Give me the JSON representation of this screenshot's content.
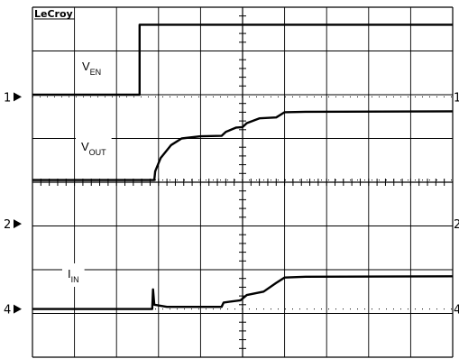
{
  "brand": "LeCroy",
  "chart_data": {
    "type": "line",
    "title": "",
    "grid": true,
    "divisions": {
      "x": 10,
      "y": 8
    },
    "x_range_div": [
      0,
      10
    ],
    "y_range_div": [
      0,
      8
    ],
    "series": [
      {
        "name": "VEN",
        "label_main": "V",
        "label_sub": "EN",
        "marker": "1",
        "ground_div": 5.95,
        "points": [
          [
            0,
            6.0
          ],
          [
            2.55,
            6.0
          ],
          [
            2.55,
            7.6
          ],
          [
            10,
            7.6
          ]
        ]
      },
      {
        "name": "VOUT",
        "label_main": "V",
        "label_sub": "OUT",
        "marker": "",
        "ground_div": 4.05,
        "points": [
          [
            0,
            4.05
          ],
          [
            2.9,
            4.05
          ],
          [
            2.92,
            4.25
          ],
          [
            3.05,
            4.55
          ],
          [
            3.3,
            4.85
          ],
          [
            3.55,
            5.0
          ],
          [
            4.0,
            5.05
          ],
          [
            4.5,
            5.06
          ],
          [
            4.6,
            5.15
          ],
          [
            4.85,
            5.25
          ],
          [
            5.0,
            5.26
          ],
          [
            5.1,
            5.35
          ],
          [
            5.4,
            5.46
          ],
          [
            5.8,
            5.48
          ],
          [
            6.0,
            5.6
          ],
          [
            6.5,
            5.61
          ],
          [
            10,
            5.62
          ]
        ]
      },
      {
        "name": "IIN",
        "label_main": "I",
        "label_sub": "IN",
        "marker": "4",
        "ground_div": 1.1,
        "points": [
          [
            0,
            1.1
          ],
          [
            2.85,
            1.1
          ],
          [
            2.87,
            1.55
          ],
          [
            2.9,
            1.2
          ],
          [
            3.2,
            1.15
          ],
          [
            4.5,
            1.15
          ],
          [
            4.55,
            1.25
          ],
          [
            4.95,
            1.3
          ],
          [
            5.1,
            1.42
          ],
          [
            5.5,
            1.5
          ],
          [
            5.8,
            1.7
          ],
          [
            6.0,
            1.82
          ],
          [
            6.5,
            1.84
          ],
          [
            10,
            1.85
          ]
        ]
      }
    ],
    "channel_markers": [
      {
        "label": "1",
        "level_div": 5.95
      },
      {
        "label": "2",
        "level_div": 3.05
      },
      {
        "label": "4",
        "level_div": 1.1
      }
    ]
  }
}
